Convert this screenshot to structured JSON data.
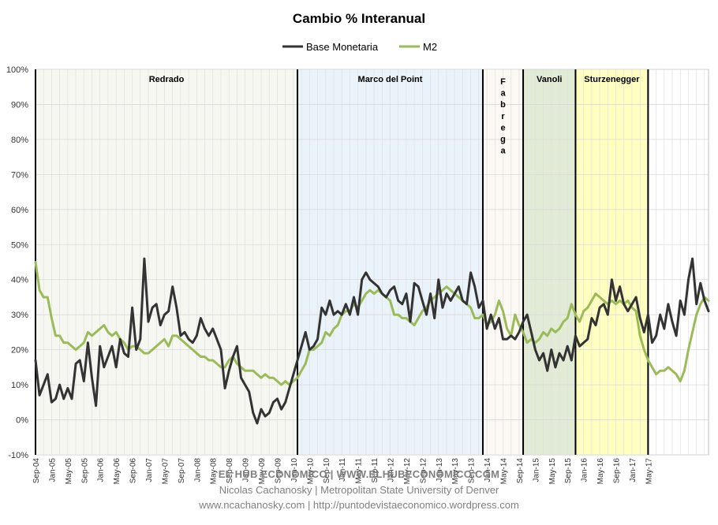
{
  "chart_data": {
    "type": "line",
    "title": "Cambio % Interanual",
    "xlabel": "",
    "ylabel": "",
    "ylim": [
      -10,
      100
    ],
    "y_ticks": [
      "-10%",
      "0%",
      "10%",
      "20%",
      "30%",
      "40%",
      "50%",
      "60%",
      "70%",
      "80%",
      "90%",
      "100%"
    ],
    "x_start": "Sep-04",
    "x_end": "May-17",
    "x_tick_labels": [
      "Sep-04",
      "Jan-05",
      "May-05",
      "Sep-05",
      "Jan-06",
      "May-06",
      "Sep-06",
      "Jan-07",
      "May-07",
      "Sep-07",
      "Jan-08",
      "May-08",
      "Sep-08",
      "Jan-09",
      "May-09",
      "Sep-09",
      "Jan-10",
      "May-10",
      "Sep-10",
      "Jan-11",
      "May-11",
      "Sep-11",
      "Jan-12",
      "May-12",
      "Sep-12",
      "Jan-13",
      "May-13",
      "Sep-13",
      "Jan-14",
      "May-14",
      "Sep-14",
      "Jan-15",
      "May-15",
      "Sep-15",
      "Jan-16",
      "May-16",
      "Sep-16",
      "Jan-17",
      "May-17"
    ],
    "legend": [
      "Base Monetaria",
      "M2"
    ],
    "legend_position": "top-center",
    "periods": [
      {
        "name": "Redrado",
        "start_index": 0,
        "end_index": 65,
        "color": "#f6f7f1"
      },
      {
        "name": "Marco del Point",
        "start_index": 65,
        "end_index": 111,
        "color": "#eaf2fa"
      },
      {
        "name": "F\na\nb\nr\ne\ng\na",
        "start_index": 111,
        "end_index": 121,
        "color": "#fcf8f3"
      },
      {
        "name": "Vanoli",
        "start_index": 121,
        "end_index": 134,
        "color": "#e2ebd5"
      },
      {
        "name": "Sturzenegger",
        "start_index": 134,
        "end_index": 152,
        "color": "#ffffc0"
      }
    ],
    "series": [
      {
        "name": "Base Monetaria",
        "color": "#333333",
        "values": [
          17,
          7,
          10,
          13,
          5,
          6,
          10,
          6,
          9,
          6,
          16,
          17,
          11,
          22,
          12,
          4,
          21,
          15,
          18,
          21,
          15,
          23,
          19,
          18,
          32,
          20,
          23,
          46,
          28,
          32,
          33,
          27,
          30,
          31,
          38,
          32,
          24,
          25,
          23,
          22,
          24,
          29,
          26,
          24,
          26,
          23,
          20,
          9,
          14,
          18,
          21,
          12,
          10,
          8,
          2,
          -1,
          3,
          1,
          2,
          5,
          6,
          3,
          5,
          9,
          13,
          17,
          21,
          25,
          20,
          21,
          23,
          32,
          30,
          34,
          30,
          31,
          30,
          33,
          30,
          35,
          30,
          40,
          42,
          40,
          39,
          38,
          36,
          35,
          37,
          38,
          34,
          33,
          36,
          28,
          39,
          38,
          34,
          30,
          36,
          29,
          40,
          32,
          36,
          34,
          36,
          38,
          34,
          33,
          42,
          38,
          32,
          34,
          26,
          30,
          26,
          29,
          23,
          23,
          24,
          23,
          25,
          28,
          30,
          25,
          20,
          17,
          19,
          14,
          20,
          15,
          19,
          17,
          21,
          17,
          24,
          21,
          22,
          23,
          29,
          27,
          32,
          33,
          30,
          40,
          34,
          38,
          33,
          31,
          33,
          35,
          29,
          25,
          30,
          22,
          24,
          30,
          26,
          33,
          28,
          24,
          34,
          30,
          40,
          46,
          33,
          39,
          34,
          31
        ]
      },
      {
        "name": "M2",
        "color": "#9bbb59",
        "values": [
          45,
          37,
          35,
          35,
          29,
          24,
          24,
          22,
          22,
          21,
          20,
          21,
          22,
          25,
          24,
          25,
          26,
          27,
          25,
          24,
          25,
          23,
          22,
          20,
          21,
          21,
          20,
          19,
          19,
          20,
          21,
          22,
          23,
          21,
          24,
          24,
          23,
          22,
          21,
          20,
          19,
          18,
          18,
          17,
          17,
          16,
          15,
          15,
          17,
          18,
          16,
          15,
          14,
          14,
          14,
          13,
          12,
          13,
          12,
          12,
          11,
          10,
          11,
          10,
          11,
          12,
          14,
          16,
          20,
          20,
          21,
          22,
          25,
          24,
          26,
          27,
          30,
          31,
          31,
          33,
          32,
          34,
          36,
          37,
          36,
          37,
          36,
          35,
          34,
          30,
          30,
          29,
          29,
          28,
          27,
          29,
          31,
          32,
          34,
          35,
          36,
          37,
          38,
          37,
          36,
          35,
          34,
          33,
          32,
          29,
          29,
          30,
          27,
          28,
          30,
          34,
          31,
          26,
          24,
          30,
          27,
          25,
          22,
          23,
          22,
          23,
          25,
          24,
          26,
          25,
          26,
          28,
          29,
          33,
          30,
          28,
          31,
          32,
          34,
          36,
          35,
          34,
          33,
          34,
          33,
          34,
          33,
          34,
          32,
          31,
          24,
          20,
          17,
          15,
          13,
          14,
          14,
          15,
          14,
          13,
          11,
          14,
          20,
          25,
          30,
          33,
          35,
          34
        ]
      }
    ]
  },
  "footer": {
    "line1": "EL HUB ECONOMICO | WWW.ELHUBECONOMICO.COM",
    "line2": "Nicolas Cachanosky | Metropolitan State University of Denver",
    "line3": "www.ncachanosky.com  |  http://puntodevistaeconomico.wordpress.com"
  }
}
